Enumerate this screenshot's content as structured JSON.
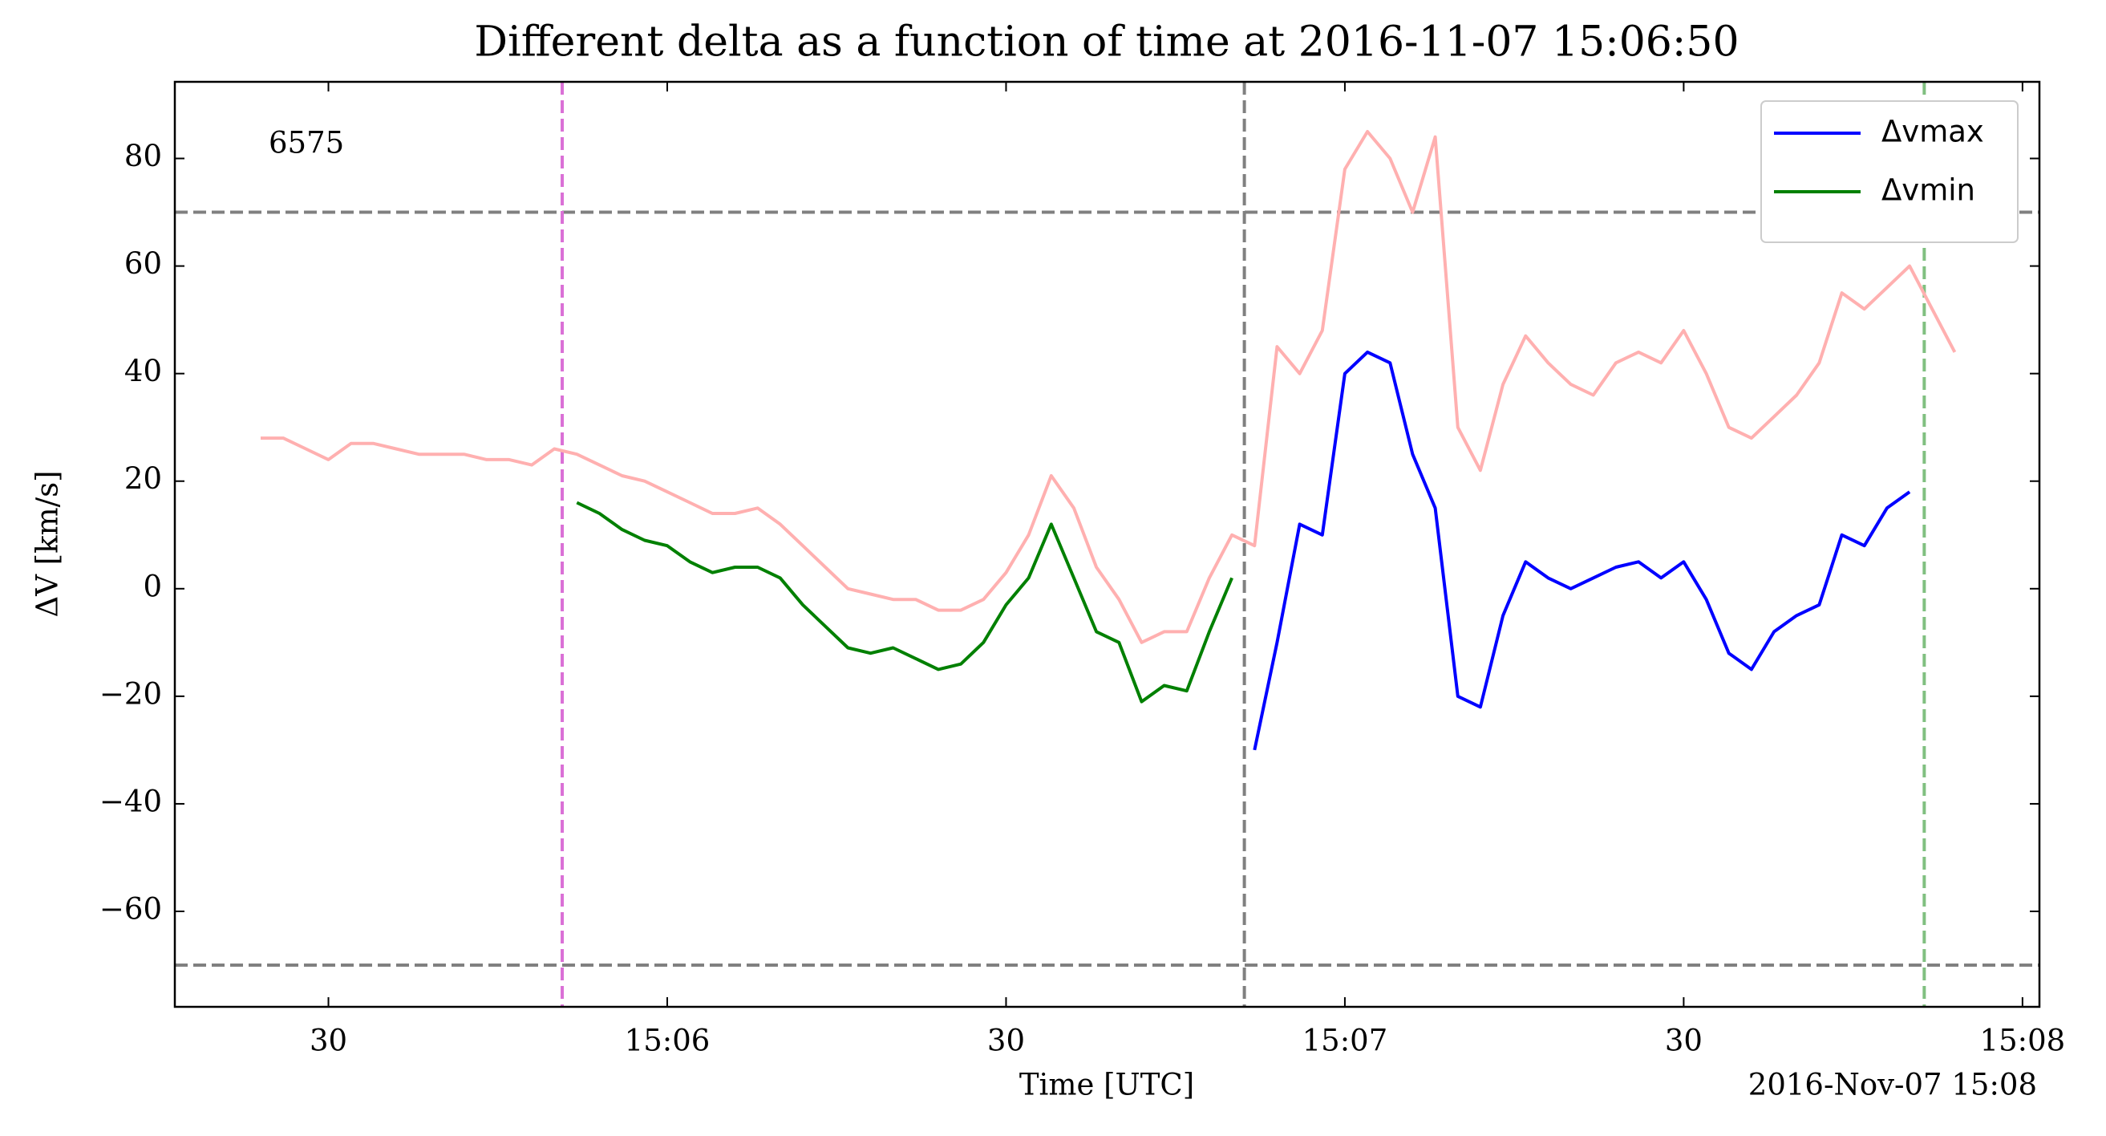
{
  "chart_data": {
    "type": "line",
    "title": "Different delta as a function of time at 2016-11-07 15:06:50",
    "xlabel": "Time [UTC]",
    "ylabel": "ΔV [km/s]",
    "offset_label": "2016-Nov-07 15:08",
    "annotation": {
      "text": "6575",
      "color": "#ff0000"
    },
    "x": [
      "15:05:24",
      "15:05:26",
      "15:05:28",
      "15:05:30",
      "15:05:32",
      "15:05:34",
      "15:05:36",
      "15:05:38",
      "15:05:40",
      "15:05:42",
      "15:05:44",
      "15:05:46",
      "15:05:48",
      "15:05:50",
      "15:05:52",
      "15:05:54",
      "15:05:56",
      "15:05:58",
      "15:06:00",
      "15:06:02",
      "15:06:04",
      "15:06:06",
      "15:06:08",
      "15:06:10",
      "15:06:12",
      "15:06:14",
      "15:06:16",
      "15:06:18",
      "15:06:20",
      "15:06:22",
      "15:06:24",
      "15:06:26",
      "15:06:28",
      "15:06:30",
      "15:06:32",
      "15:06:34",
      "15:06:36",
      "15:06:38",
      "15:06:40",
      "15:06:42",
      "15:06:44",
      "15:06:46",
      "15:06:48",
      "15:06:50",
      "15:06:52",
      "15:06:54",
      "15:06:56",
      "15:06:58",
      "15:07:00",
      "15:07:02",
      "15:07:04",
      "15:07:06",
      "15:07:08",
      "15:07:10",
      "15:07:12",
      "15:07:14",
      "15:07:16",
      "15:07:18",
      "15:07:20",
      "15:07:22",
      "15:07:24",
      "15:07:26",
      "15:07:28",
      "15:07:30",
      "15:07:32",
      "15:07:34",
      "15:07:36",
      "15:07:38",
      "15:07:40",
      "15:07:42",
      "15:07:44",
      "15:07:46",
      "15:07:48",
      "15:07:50",
      "15:07:52",
      "15:07:54"
    ],
    "series": [
      {
        "color": "#ffb0b0",
        "values": [
          28,
          28,
          26,
          24,
          27,
          27,
          26,
          25,
          25,
          25,
          24,
          24,
          23,
          26,
          25,
          23,
          21,
          20,
          18,
          16,
          14,
          14,
          15,
          12,
          8,
          4,
          0,
          -1,
          -2,
          -2,
          -4,
          -4,
          -2,
          3,
          10,
          21,
          15,
          4,
          -2,
          -10,
          -8,
          -8,
          2,
          10,
          8,
          45,
          40,
          48,
          78,
          85,
          80,
          70,
          84,
          30,
          22,
          38,
          47,
          42,
          38,
          36,
          42,
          44,
          42,
          48,
          40,
          30,
          28,
          32,
          36,
          42,
          55,
          52,
          56,
          60,
          52,
          44
        ]
      },
      {
        "name": "Δvmax",
        "color": "#0000ff",
        "values": [
          null,
          null,
          null,
          null,
          null,
          null,
          null,
          null,
          null,
          null,
          null,
          null,
          null,
          null,
          null,
          null,
          null,
          null,
          null,
          null,
          null,
          null,
          null,
          null,
          null,
          null,
          null,
          null,
          null,
          null,
          null,
          null,
          null,
          null,
          null,
          null,
          null,
          null,
          null,
          null,
          null,
          null,
          null,
          null,
          -30,
          -10,
          12,
          10,
          40,
          44,
          42,
          25,
          15,
          -20,
          -22,
          -5,
          5,
          2,
          0,
          2,
          4,
          5,
          2,
          5,
          -2,
          -12,
          -15,
          -8,
          -5,
          -3,
          10,
          8,
          15,
          18,
          null,
          null
        ]
      },
      {
        "name": "Δvmin",
        "color": "#008000",
        "values": [
          null,
          null,
          null,
          null,
          null,
          null,
          null,
          null,
          null,
          null,
          null,
          null,
          null,
          null,
          16,
          14,
          11,
          9,
          8,
          5,
          3,
          4,
          4,
          2,
          -3,
          -7,
          -11,
          -12,
          -11,
          -13,
          -15,
          -14,
          -10,
          -3,
          2,
          12,
          2,
          -8,
          -10,
          -21,
          -18,
          -19,
          -8,
          2,
          null,
          null,
          null,
          null,
          null,
          null,
          null,
          null,
          null,
          null,
          null,
          null,
          null,
          null,
          null,
          null,
          null,
          null,
          null,
          null,
          null,
          null,
          null,
          null,
          null,
          null,
          null,
          null,
          null,
          null,
          null,
          null
        ]
      }
    ],
    "vlines": [
      {
        "x": "15:05:50.7",
        "color": "#da70d6"
      },
      {
        "x": "15:06:51.1",
        "color": "#808080"
      },
      {
        "x": "15:07:51.3",
        "color": "#80c080"
      }
    ],
    "hlines": [
      {
        "y": 70,
        "color": "#808080"
      },
      {
        "y": -70,
        "color": "#808080"
      }
    ],
    "xlim": [
      "15:05:16.4",
      "15:08:01.5"
    ],
    "xticks": [
      {
        "value": "15:05:30",
        "label": "30"
      },
      {
        "value": "15:06:00",
        "label": "15:06"
      },
      {
        "value": "15:06:30",
        "label": "30"
      },
      {
        "value": "15:07:00",
        "label": "15:07"
      },
      {
        "value": "15:07:30",
        "label": "30"
      },
      {
        "value": "15:08:00",
        "label": "15:08"
      }
    ],
    "ylim": [
      -77.75,
      94.25
    ],
    "yticks": [
      {
        "value": -60,
        "label": "−60"
      },
      {
        "value": -40,
        "label": "−40"
      },
      {
        "value": -20,
        "label": "−20"
      },
      0,
      20,
      40,
      60,
      80
    ],
    "legend": "upper right"
  }
}
